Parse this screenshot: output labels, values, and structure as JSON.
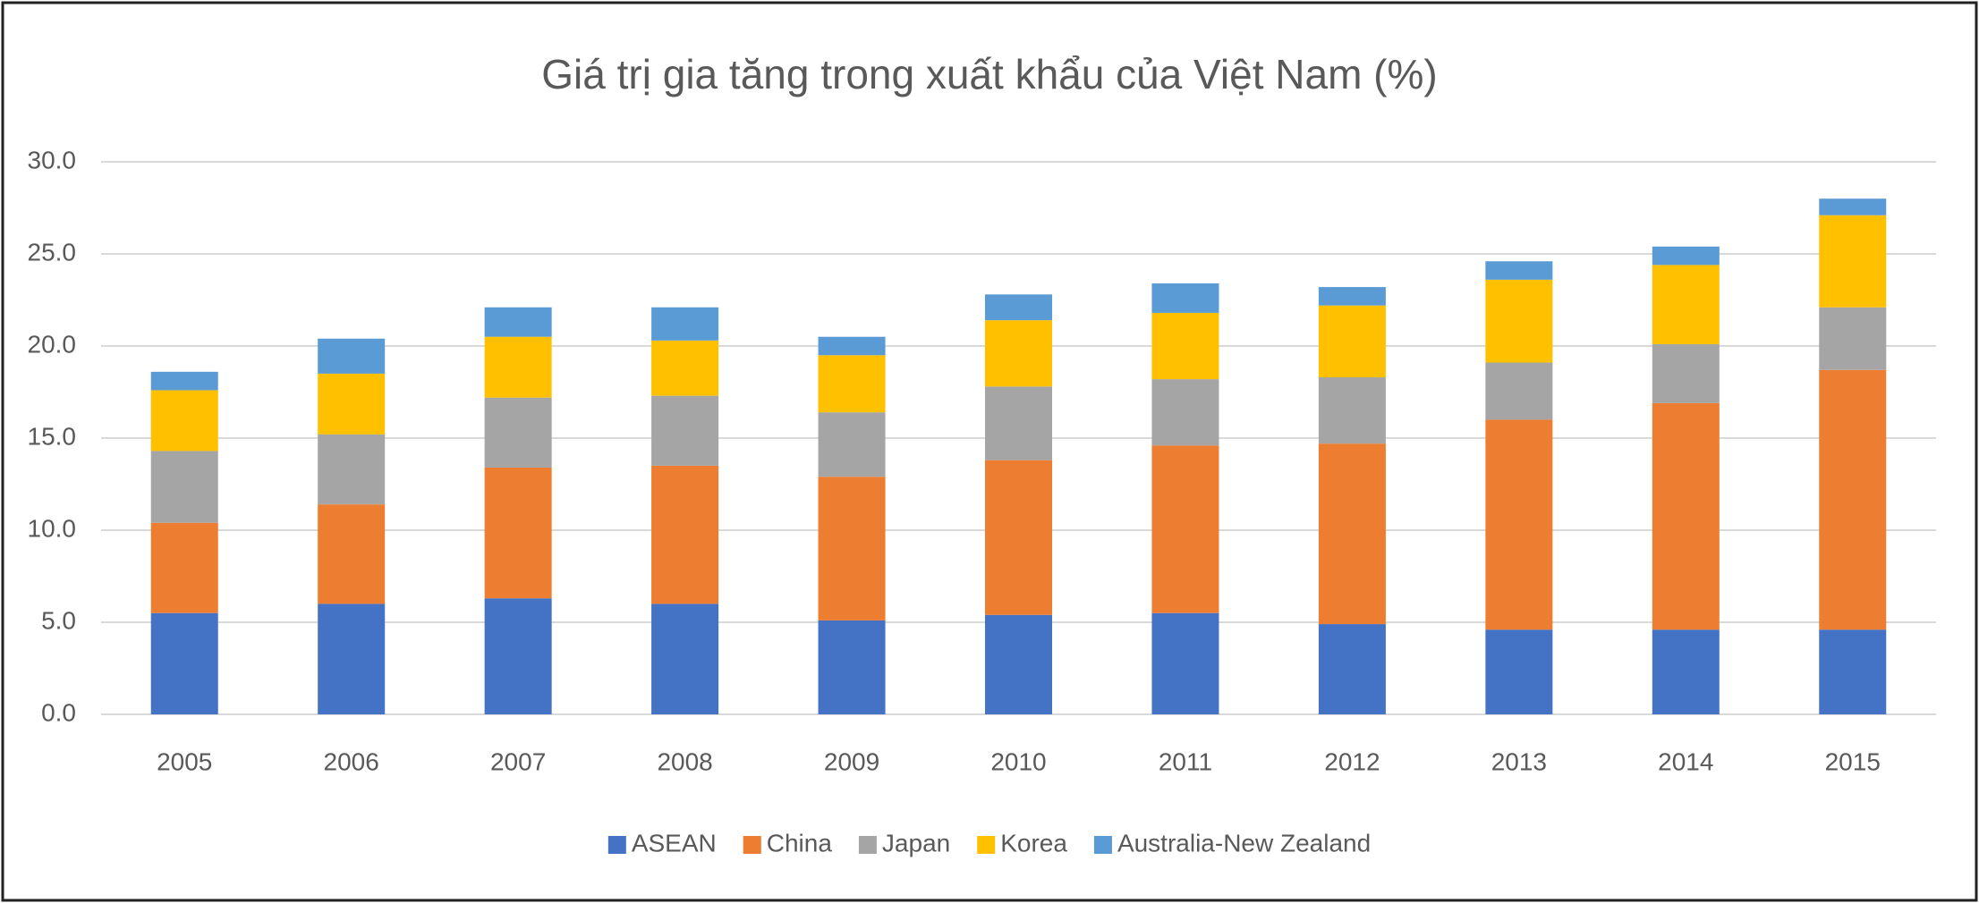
{
  "chart_data": {
    "type": "stacked_bar",
    "title": "Giá trị gia tăng trong xuất khẩu của Việt Nam (%)",
    "categories": [
      "2005",
      "2006",
      "2007",
      "2008",
      "2009",
      "2010",
      "2011",
      "2012",
      "2013",
      "2014",
      "2015"
    ],
    "series": [
      {
        "name": "ASEAN",
        "color": "#4472c4",
        "values": [
          5.5,
          6.0,
          6.3,
          6.0,
          5.1,
          5.4,
          5.5,
          4.9,
          4.6,
          4.6,
          4.6
        ]
      },
      {
        "name": "China",
        "color": "#ed7d31",
        "values": [
          4.9,
          5.4,
          7.1,
          7.5,
          7.8,
          8.4,
          9.1,
          9.8,
          11.4,
          12.3,
          14.1
        ]
      },
      {
        "name": "Japan",
        "color": "#a5a5a5",
        "values": [
          3.9,
          3.8,
          3.8,
          3.8,
          3.5,
          4.0,
          3.6,
          3.6,
          3.1,
          3.2,
          3.4
        ]
      },
      {
        "name": "Korea",
        "color": "#ffc000",
        "values": [
          3.3,
          3.3,
          3.3,
          3.0,
          3.1,
          3.6,
          3.6,
          3.9,
          4.5,
          4.3,
          5.0
        ]
      },
      {
        "name": "Australia-New Zealand",
        "color": "#5b9bd5",
        "values": [
          1.0,
          1.9,
          1.6,
          1.8,
          1.0,
          1.4,
          1.6,
          1.0,
          1.0,
          1.0,
          0.9
        ]
      }
    ],
    "ylim": [
      0,
      30
    ],
    "yticks": [
      {
        "value": 0,
        "label": "0.0"
      },
      {
        "value": 5,
        "label": "5.0"
      },
      {
        "value": 10,
        "label": "10.0"
      },
      {
        "value": 15,
        "label": "15.0"
      },
      {
        "value": 20,
        "label": "20.0"
      },
      {
        "value": 25,
        "label": "25.0"
      },
      {
        "value": 30,
        "label": "30.0"
      }
    ],
    "grid": true,
    "legend": "bottom"
  }
}
